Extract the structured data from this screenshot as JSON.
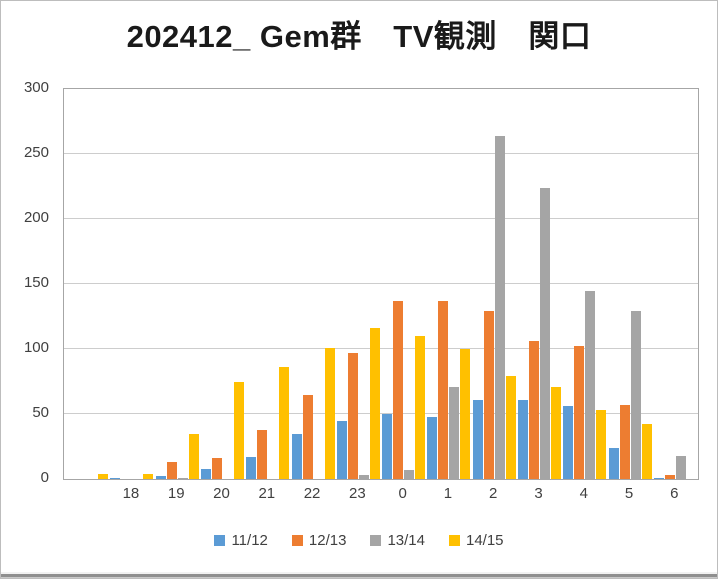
{
  "window": {
    "background": "#ffffff",
    "border_color": "#bdbdbd"
  },
  "chart_data": {
    "type": "bar",
    "title": "202412_ Gem群　TV観測　関口",
    "title_color": "#1a1a1a",
    "categories": [
      "",
      "18",
      "19",
      "20",
      "21",
      "22",
      "23",
      "0",
      "1",
      "2",
      "3",
      "4",
      "5",
      "6"
    ],
    "series": [
      {
        "name": "11/12",
        "color": "#5B9BD5",
        "values": [
          0,
          1,
          2,
          8,
          17,
          35,
          45,
          50,
          48,
          61,
          61,
          56,
          24,
          1
        ]
      },
      {
        "name": "12/13",
        "color": "#ED7D31",
        "values": [
          0,
          0,
          13,
          16,
          38,
          65,
          97,
          137,
          137,
          129,
          106,
          102,
          57,
          3
        ]
      },
      {
        "name": "13/14",
        "color": "#A5A5A5",
        "values": [
          0,
          0,
          1,
          0,
          0,
          0,
          3,
          7,
          71,
          264,
          224,
          145,
          129,
          18
        ]
      },
      {
        "name": "14/15",
        "color": "#FFC000",
        "values": [
          4,
          4,
          35,
          75,
          86,
          101,
          116,
          110,
          100,
          79,
          71,
          53,
          42,
          0
        ]
      }
    ],
    "y_axis": {
      "min": 0,
      "max": 300,
      "step": 50,
      "ticks": [
        0,
        50,
        100,
        150,
        200,
        250,
        300
      ]
    },
    "xlabel": "",
    "ylabel": "",
    "grid": true,
    "legend_position": "bottom",
    "axis_label_color": "#404040",
    "gridline_color": "#cdcdcd",
    "plot_border_color": "#a6a6a6"
  }
}
